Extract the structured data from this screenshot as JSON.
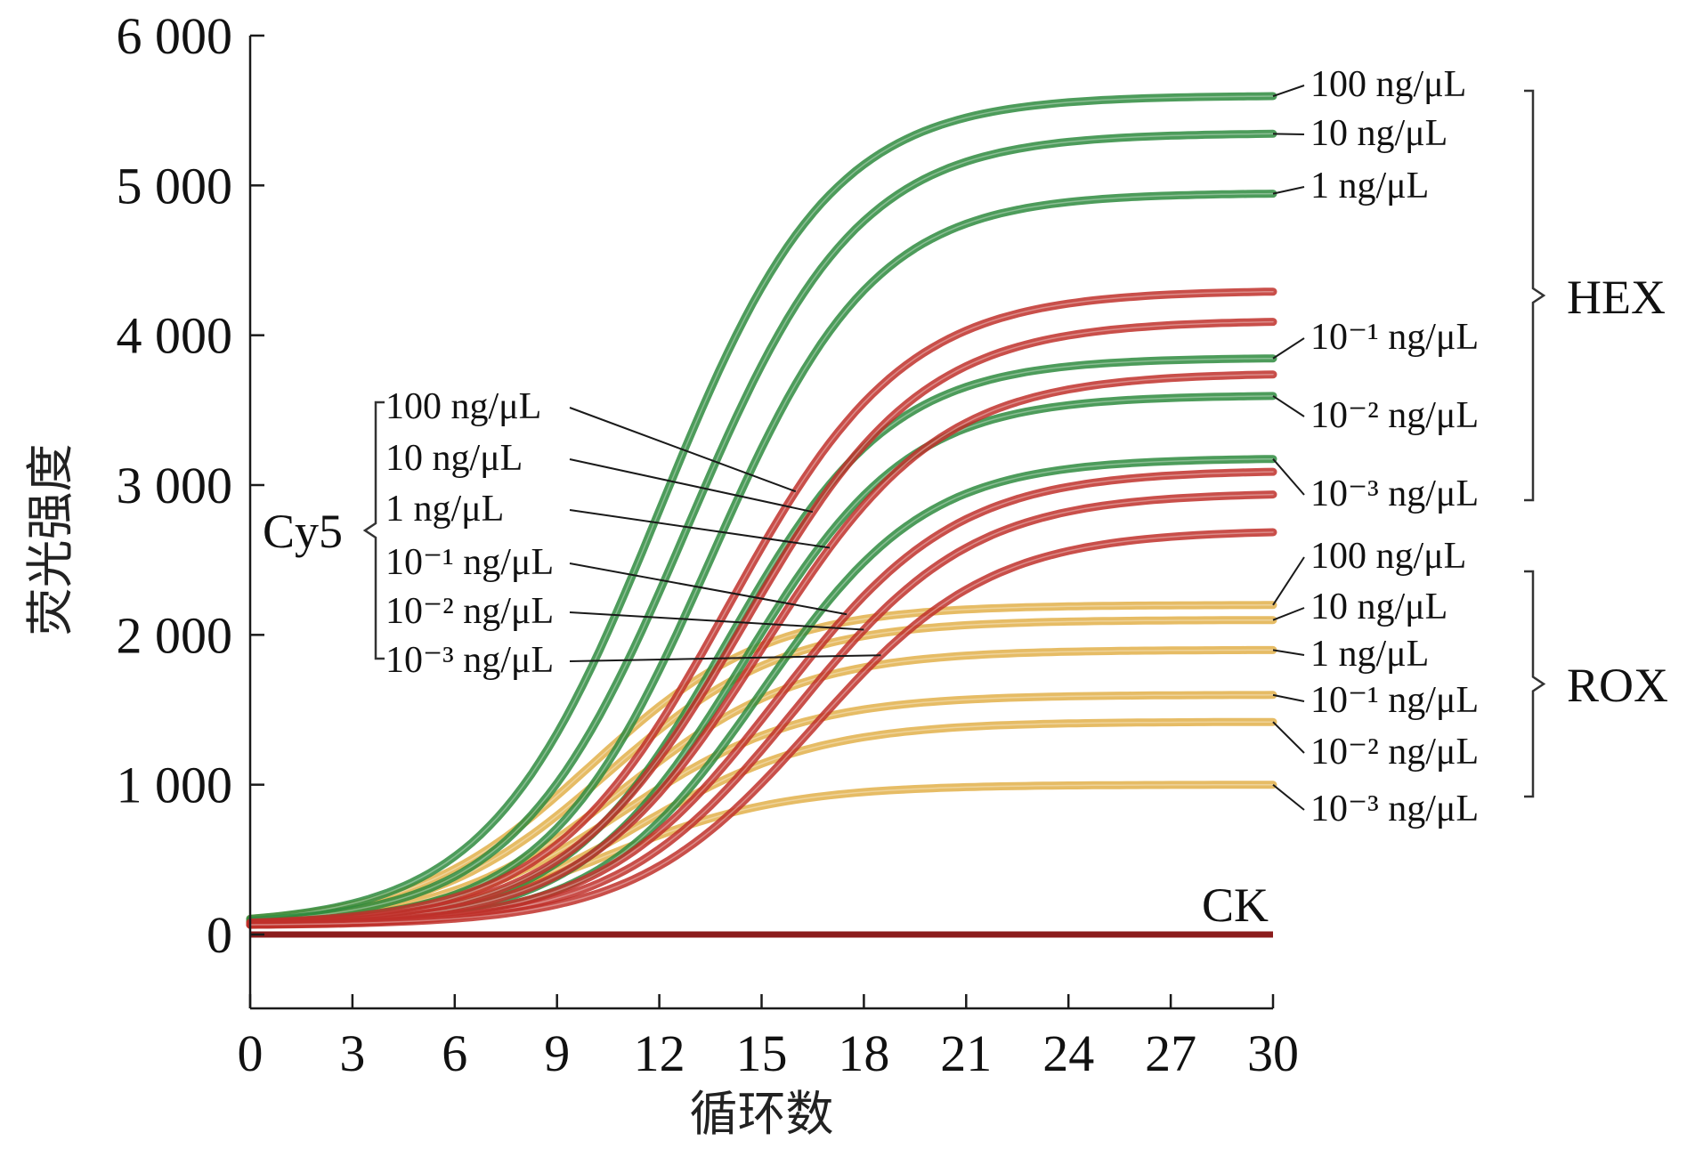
{
  "chart_data": {
    "type": "line",
    "xlabel": "循环数",
    "ylabel": "荧光强度",
    "xlim": [
      0,
      30
    ],
    "ylim": [
      -500,
      6000
    ],
    "x_ticks": [
      0,
      3,
      6,
      9,
      12,
      15,
      18,
      21,
      24,
      27,
      30
    ],
    "y_ticks": [
      0,
      1000,
      2000,
      3000,
      4000,
      5000,
      6000
    ],
    "x_tick_labels": [
      "0",
      "3",
      "6",
      "9",
      "12",
      "15",
      "18",
      "21",
      "24",
      "27",
      "30"
    ],
    "y_tick_labels": [
      "0",
      "1 000",
      "2 000",
      "3 000",
      "4 000",
      "5 000",
      "6 000"
    ],
    "grid": false,
    "colors": {
      "HEX": "#2e8b3e",
      "Cy5": "#c0302a",
      "ROX": "#e2b04a",
      "CK": "#8b1c1c"
    },
    "groups": [
      {
        "name": "HEX",
        "label_side": "right",
        "series": [
          {
            "name": "100 ng/μL",
            "plateau": 5600,
            "midpoint": 12.0,
            "slope": 2.5
          },
          {
            "name": "10 ng/μL",
            "plateau": 5350,
            "midpoint": 12.8,
            "slope": 2.5
          },
          {
            "name": "1 ng/μL",
            "plateau": 4950,
            "midpoint": 13.5,
            "slope": 2.4
          },
          {
            "name": "10⁻¹ ng/μL",
            "plateau": 3850,
            "midpoint": 14.0,
            "slope": 2.4
          },
          {
            "name": "10⁻² ng/μL",
            "plateau": 3600,
            "midpoint": 14.5,
            "slope": 2.4
          },
          {
            "name": "10⁻³ ng/μL",
            "plateau": 3180,
            "midpoint": 15.0,
            "slope": 2.4
          }
        ]
      },
      {
        "name": "Cy5",
        "label_side": "left",
        "series": [
          {
            "name": "100 ng/μL",
            "plateau": 4300,
            "midpoint": 14.0,
            "slope": 2.6
          },
          {
            "name": "10 ng/μL",
            "plateau": 4100,
            "midpoint": 14.5,
            "slope": 2.6
          },
          {
            "name": "1 ng/μL",
            "plateau": 3750,
            "midpoint": 15.0,
            "slope": 2.6
          },
          {
            "name": "10⁻¹ ng/μL",
            "plateau": 3100,
            "midpoint": 15.5,
            "slope": 2.6
          },
          {
            "name": "10⁻² ng/μL",
            "plateau": 2950,
            "midpoint": 16.0,
            "slope": 2.6
          },
          {
            "name": "10⁻³ ng/μL",
            "plateau": 2700,
            "midpoint": 16.5,
            "slope": 2.6
          }
        ]
      },
      {
        "name": "ROX",
        "label_side": "right",
        "series": [
          {
            "name": "100 ng/μL",
            "plateau": 2200,
            "midpoint": 10.0,
            "slope": 2.6
          },
          {
            "name": "10 ng/μL",
            "plateau": 2100,
            "midpoint": 10.5,
            "slope": 2.6
          },
          {
            "name": "1 ng/μL",
            "plateau": 1900,
            "midpoint": 11.0,
            "slope": 2.6
          },
          {
            "name": "10⁻¹ ng/μL",
            "plateau": 1600,
            "midpoint": 11.0,
            "slope": 2.6
          },
          {
            "name": "10⁻² ng/μL",
            "plateau": 1420,
            "midpoint": 11.5,
            "slope": 2.6
          },
          {
            "name": "10⁻³ ng/μL",
            "plateau": 1000,
            "midpoint": 10.5,
            "slope": 2.6
          }
        ]
      }
    ],
    "baseline": {
      "name": "CK",
      "value": 0
    }
  }
}
